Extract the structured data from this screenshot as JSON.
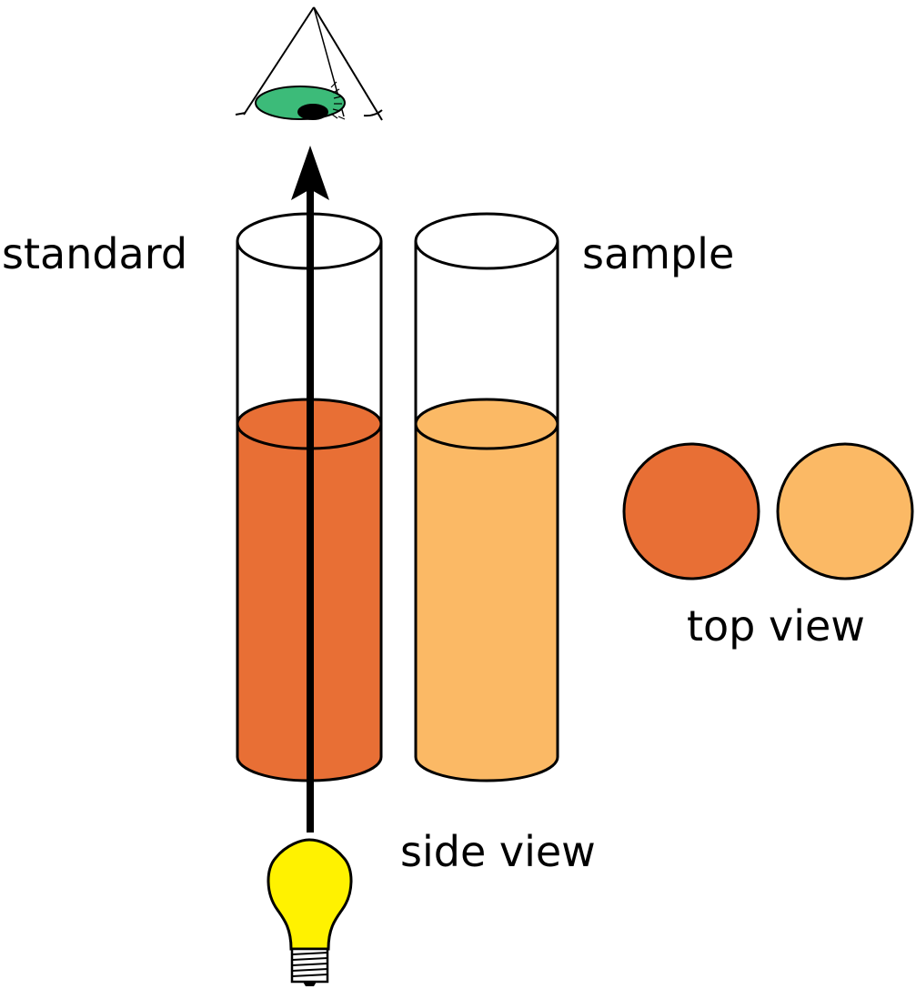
{
  "labels": {
    "standard": "standard",
    "sample": "sample",
    "top_view": "top view",
    "side_view": "side view"
  },
  "colors": {
    "standard_liquid": "#E86F35",
    "sample_liquid": "#FBB965",
    "iris": "#3CBB79",
    "bulb": "#FFF200",
    "outline": "#000000"
  },
  "icons": {
    "eye": "eye-icon",
    "bulb": "light-bulb-icon",
    "arrow": "light-path-arrow"
  }
}
